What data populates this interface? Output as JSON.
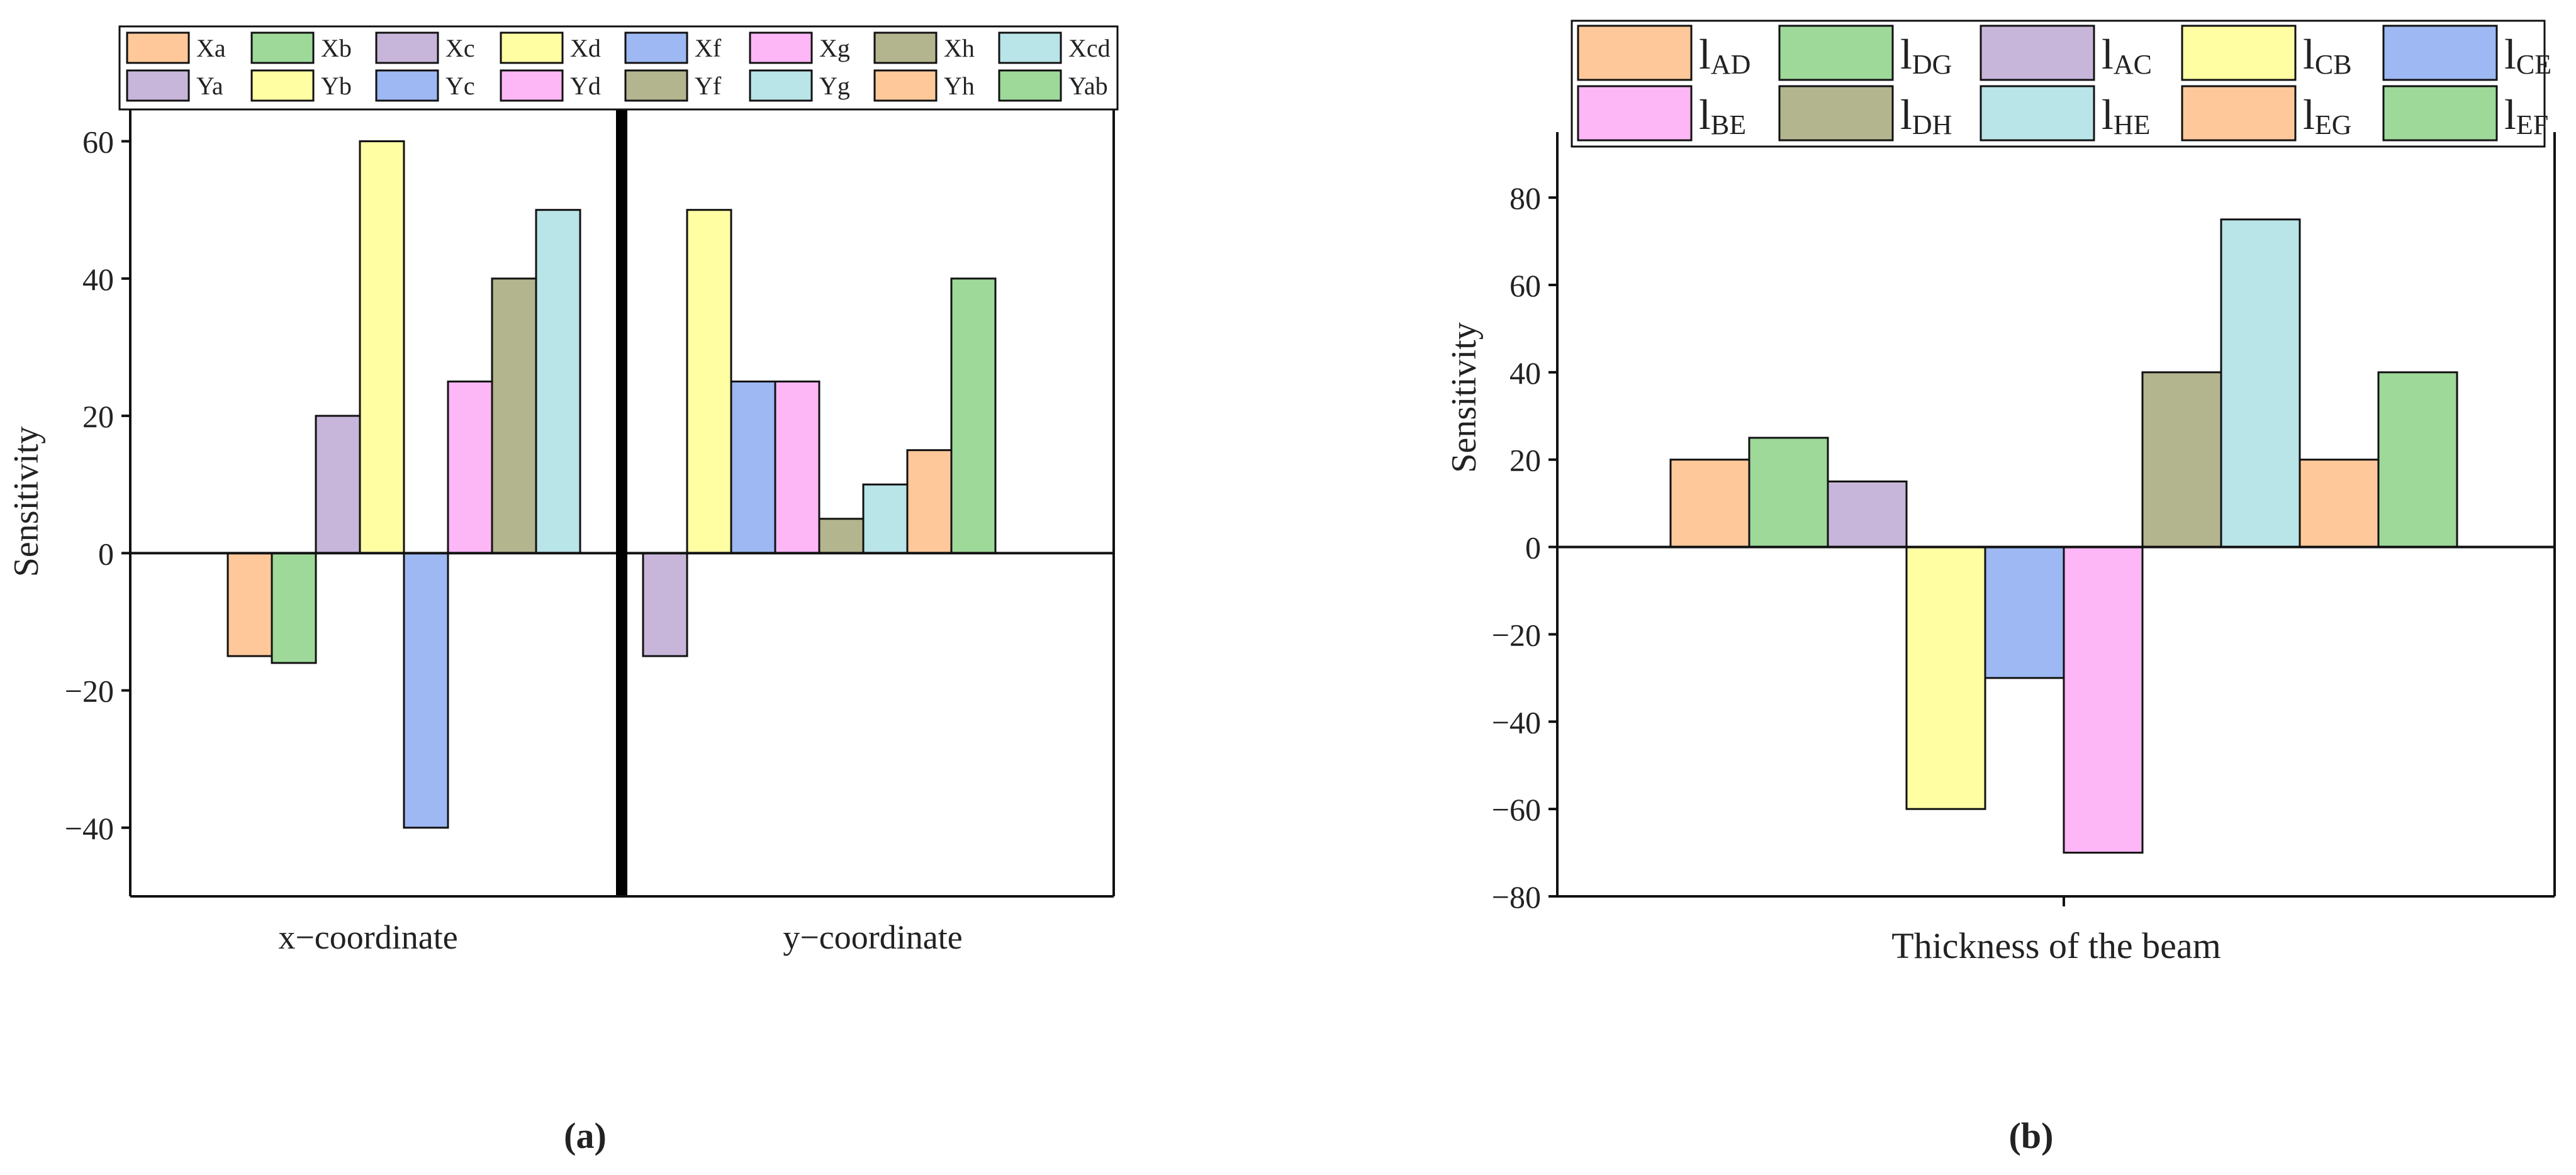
{
  "chart_data": [
    {
      "type": "bar",
      "panel_label": "(a)",
      "ylabel": "Sensitivity",
      "ylim": [
        -50,
        65
      ],
      "yticks": [
        -40,
        -20,
        0,
        20,
        40,
        60
      ],
      "groups": [
        {
          "xlabel": "x−coordinate",
          "bars": [
            {
              "label": "Xa",
              "value": -15,
              "color": "#FEC89A"
            },
            {
              "label": "Xb",
              "value": -16,
              "color": "#9ED99A"
            },
            {
              "label": "Xc",
              "value": 20,
              "color": "#C7B6D9"
            },
            {
              "label": "Xd",
              "value": 60,
              "color": "#FFFEA3"
            },
            {
              "label": "Xf",
              "value": -40,
              "color": "#9DB8F2"
            },
            {
              "label": "Xg",
              "value": 25,
              "color": "#FDB6F6"
            },
            {
              "label": "Xh",
              "value": 40,
              "color": "#B3B58F"
            },
            {
              "label": "Xcd",
              "value": 50,
              "color": "#B9E4E8"
            }
          ]
        },
        {
          "xlabel": "y−coordinate",
          "bars": [
            {
              "label": "Ya",
              "value": -15,
              "color": "#C7B6D9"
            },
            {
              "label": "Yb",
              "value": 50,
              "color": "#FFFEA3"
            },
            {
              "label": "Yc",
              "value": 25,
              "color": "#9DB8F2"
            },
            {
              "label": "Yd",
              "value": 25,
              "color": "#FDB6F6"
            },
            {
              "label": "Yf",
              "value": 5,
              "color": "#B3B58F"
            },
            {
              "label": "Yg",
              "value": 10,
              "color": "#B9E4E8"
            },
            {
              "label": "Yh",
              "value": 15,
              "color": "#FEC89A"
            },
            {
              "label": "Yab",
              "value": 40,
              "color": "#9ED99A"
            }
          ]
        }
      ],
      "legend_rows": [
        [
          "Xa",
          "Xb",
          "Xc",
          "Xd",
          "Xf",
          "Xg",
          "Xh",
          "Xcd"
        ],
        [
          "Ya",
          "Yb",
          "Yc",
          "Yd",
          "Yf",
          "Yg",
          "Yh",
          "Yab"
        ]
      ]
    },
    {
      "type": "bar",
      "panel_label": "(b)",
      "ylabel": "Sensitivity",
      "xlabel": "Thickness of the beam",
      "ylim": [
        -80,
        95
      ],
      "yticks": [
        -80,
        -60,
        -40,
        -20,
        0,
        20,
        40,
        60,
        80
      ],
      "series": [
        {
          "name": "l",
          "sub": "AD",
          "value": 20,
          "color": "#FEC89A"
        },
        {
          "name": "l",
          "sub": "DG",
          "value": 25,
          "color": "#9ED99A"
        },
        {
          "name": "l",
          "sub": "AC",
          "value": 15,
          "color": "#C7B6D9"
        },
        {
          "name": "l",
          "sub": "CB",
          "value": -60,
          "color": "#FFFEA3"
        },
        {
          "name": "l",
          "sub": "CE",
          "value": -30,
          "color": "#9DB8F2"
        },
        {
          "name": "l",
          "sub": "BE",
          "value": -70,
          "color": "#FDB6F6"
        },
        {
          "name": "l",
          "sub": "DH",
          "value": 40,
          "color": "#B3B58F"
        },
        {
          "name": "l",
          "sub": "HE",
          "value": 75,
          "color": "#B9E4E8"
        },
        {
          "name": "l",
          "sub": "EG",
          "value": 20,
          "color": "#FEC89A"
        },
        {
          "name": "l",
          "sub": "EF",
          "value": 40,
          "color": "#9ED99A"
        }
      ]
    }
  ]
}
